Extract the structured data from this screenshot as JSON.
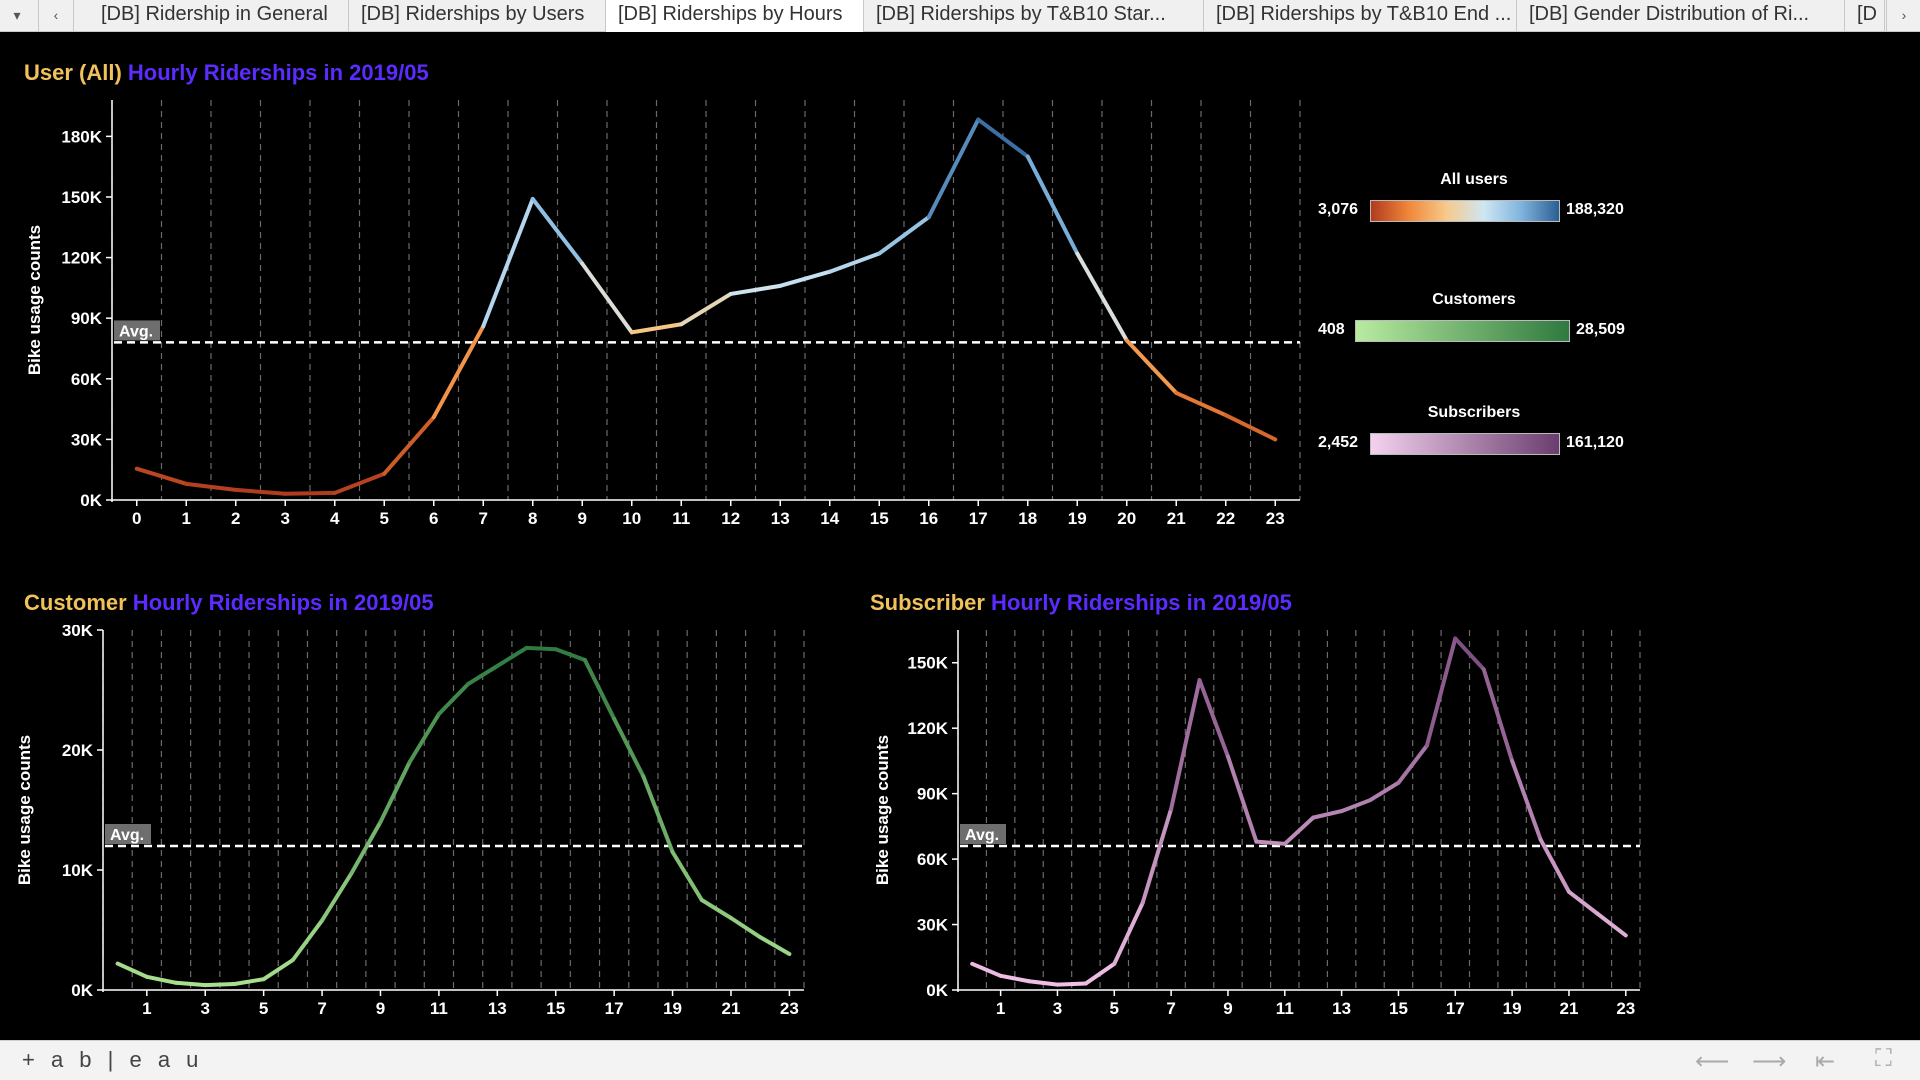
{
  "tabs": {
    "nav_down": "▾",
    "nav_prev": "‹",
    "nav_next": "›",
    "items": [
      {
        "label": "[DB] Ridership in General"
      },
      {
        "label": "[DB] Riderships by Users"
      },
      {
        "label": "[DB] Riderships by Hours"
      },
      {
        "label": "[DB] Riderships by T&B10 Star..."
      },
      {
        "label": "[DB] Riderships by T&B10 End ..."
      },
      {
        "label": "[DB] Gender Distribution of Ri..."
      },
      {
        "label": "[D"
      }
    ],
    "active_index": 2
  },
  "footer": {
    "brand": "+ a b | e a u",
    "icons": [
      "back-arrow-icon",
      "forward-arrow-icon",
      "first-page-icon",
      "fullscreen-icon"
    ]
  },
  "colors": {
    "title_user": "#f2c25a",
    "title_rest": "#5b2bff",
    "avg_line": "#ffffff",
    "customer_dark": "#2f7a3f",
    "customer_light": "#a9e08f",
    "subscriber_dark": "#7b4a7e",
    "subscriber_light": "#f0c0e6"
  },
  "panels": {
    "all": {
      "title_user": "User (All)",
      "title_rest": " Hourly Riderships in 2019/05",
      "ylabel": "Bike usage counts",
      "avg_label": "Avg."
    },
    "customer": {
      "title_user": "Customer",
      "title_rest": " Hourly Riderships in 2019/05",
      "ylabel": "Bike usage counts",
      "avg_label": "Avg."
    },
    "subscriber": {
      "title_user": "Subscriber",
      "title_rest": " Hourly Riderships in 2019/05",
      "ylabel": "Bike usage counts",
      "avg_label": "Avg."
    }
  },
  "legends": {
    "all": {
      "title": "All users",
      "min": "3,076",
      "max": "188,320"
    },
    "customer": {
      "title": "Customers",
      "min": "408",
      "max": "28,509"
    },
    "subscriber": {
      "title": "Subscribers",
      "min": "2,452",
      "max": "161,120"
    }
  },
  "chart_data": [
    {
      "type": "line",
      "title": "User (All) Hourly Riderships in 2019/05",
      "xlabel": "",
      "ylabel": "Bike usage counts",
      "x": [
        0,
        1,
        2,
        3,
        4,
        5,
        6,
        7,
        8,
        9,
        10,
        11,
        12,
        13,
        14,
        15,
        16,
        17,
        18,
        19,
        20,
        21,
        22,
        23
      ],
      "x_tick_labels": [
        "0",
        "1",
        "2",
        "3",
        "4",
        "5",
        "6",
        "7",
        "8",
        "9",
        "10",
        "11",
        "12",
        "13",
        "14",
        "15",
        "16",
        "17",
        "18",
        "19",
        "20",
        "21",
        "22",
        "23"
      ],
      "values": [
        15500,
        8000,
        5000,
        3076,
        3500,
        13000,
        41000,
        86000,
        149000,
        117000,
        83000,
        87000,
        102000,
        106000,
        113000,
        122000,
        140000,
        188320,
        170000,
        122000,
        79000,
        53000,
        42000,
        30000
      ],
      "ylim": [
        0,
        198000
      ],
      "y_ticks": [
        0,
        30000,
        60000,
        90000,
        120000,
        150000,
        180000
      ],
      "y_tick_labels": [
        "0K",
        "30K",
        "60K",
        "90K",
        "120K",
        "150K",
        "180K"
      ],
      "average": 78000,
      "avg_label": "Avg.",
      "color_scale": "orange-blue diverging",
      "grid": "vertical dashed"
    },
    {
      "type": "line",
      "title": "Customer Hourly Riderships in 2019/05",
      "xlabel": "",
      "ylabel": "Bike usage counts",
      "x": [
        0,
        1,
        2,
        3,
        4,
        5,
        6,
        7,
        8,
        9,
        10,
        11,
        12,
        13,
        14,
        15,
        16,
        17,
        18,
        19,
        20,
        21,
        22,
        23
      ],
      "x_tick_labels": [
        "1",
        "3",
        "5",
        "7",
        "9",
        "11",
        "13",
        "15",
        "17",
        "19",
        "21",
        "23"
      ],
      "values": [
        2200,
        1100,
        600,
        408,
        500,
        900,
        2500,
        5800,
        9700,
        14000,
        19000,
        23000,
        25500,
        27000,
        28509,
        28400,
        27500,
        22600,
        17800,
        11500,
        7500,
        6000,
        4400,
        3000
      ],
      "ylim": [
        0,
        30000
      ],
      "y_ticks": [
        0,
        10000,
        20000,
        30000
      ],
      "y_tick_labels": [
        "0K",
        "10K",
        "20K",
        "30K"
      ],
      "average": 12000,
      "avg_label": "Avg.",
      "color_scale": "green sequential",
      "grid": "vertical dashed"
    },
    {
      "type": "line",
      "title": "Subscriber Hourly Riderships in 2019/05",
      "xlabel": "",
      "ylabel": "Bike usage counts",
      "x": [
        0,
        1,
        2,
        3,
        4,
        5,
        6,
        7,
        8,
        9,
        10,
        11,
        12,
        13,
        14,
        15,
        16,
        17,
        18,
        19,
        20,
        21,
        22,
        23
      ],
      "x_tick_labels": [
        "1",
        "3",
        "5",
        "7",
        "9",
        "11",
        "13",
        "15",
        "17",
        "19",
        "21",
        "23"
      ],
      "values": [
        12000,
        6500,
        4000,
        2452,
        3000,
        12000,
        40000,
        83000,
        142000,
        107000,
        68000,
        67000,
        79000,
        82000,
        87000,
        95000,
        112000,
        161120,
        147000,
        105000,
        69000,
        45000,
        35000,
        25000
      ],
      "ylim": [
        0,
        165000
      ],
      "y_ticks": [
        0,
        30000,
        60000,
        90000,
        120000,
        150000
      ],
      "y_tick_labels": [
        "0K",
        "30K",
        "60K",
        "90K",
        "120K",
        "150K"
      ],
      "average": 66000,
      "avg_label": "Avg.",
      "color_scale": "purple sequential",
      "grid": "vertical dashed"
    }
  ]
}
